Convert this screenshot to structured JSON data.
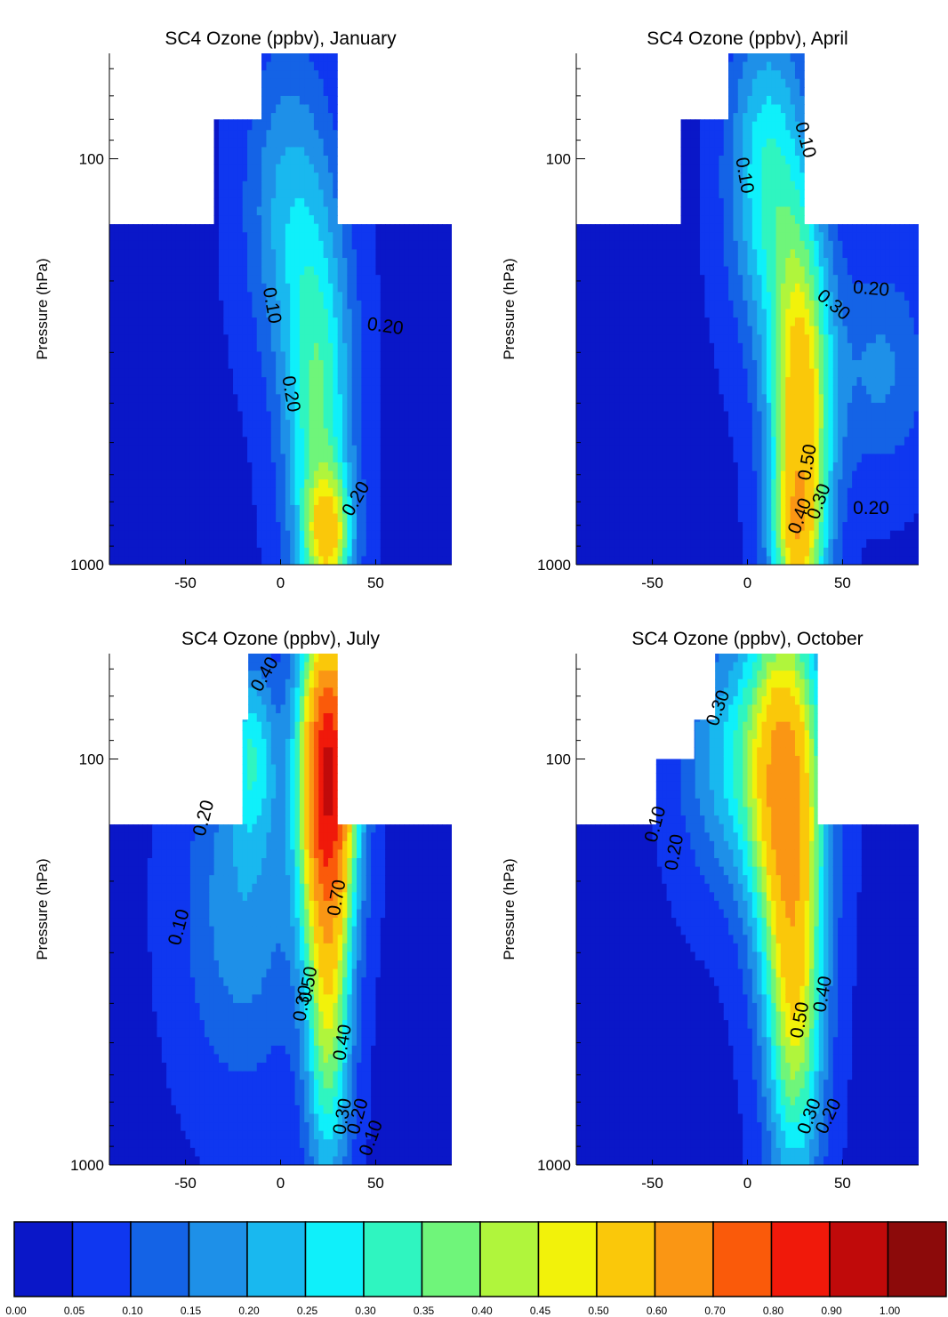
{
  "chart_data": {
    "type": "heatmap",
    "x_ticks": [
      "-50",
      "0",
      "50"
    ],
    "y_ticks": [
      "100",
      "1000"
    ],
    "ylabel": "Pressure (hPa)",
    "xlim": [
      -90,
      90
    ],
    "ylim_hpa": [
      1000,
      70
    ],
    "y_scale": "log",
    "grid": false,
    "colorbar": {
      "position": "bottom",
      "colors": [
        "#0a17c8",
        "#0f37f0",
        "#1463e6",
        "#1e90e8",
        "#19b8ef",
        "#0ff0fa",
        "#2ff5c0",
        "#6ff57a",
        "#b0f53c",
        "#f2f20a",
        "#fac80a",
        "#fa9614",
        "#fa5a0a",
        "#f0190a",
        "#c00a0a",
        "#8c0a0a"
      ],
      "tick_labels": [
        "0.00",
        "0.05",
        "0.10",
        "0.15",
        "0.20",
        "0.25",
        "0.30",
        "0.35",
        "0.40",
        "0.45",
        "0.50",
        "0.60",
        "0.70",
        "0.80",
        "0.90",
        "1.00"
      ]
    },
    "panels": [
      {
        "title": "SC4 Ozone (ppbv), January",
        "mask": {
          "ground_hpa": 145,
          "sh_step_lat": -40,
          "steps": [
            {
              "lat": -35,
              "hpa": 80
            },
            {
              "lat": -10,
              "hpa": 50
            },
            {
              "lat": 30,
              "hpa": 80
            }
          ]
        },
        "contour_labels": [
          {
            "text": "0.10",
            "lat": -5,
            "hpa": 230,
            "rot": 80
          },
          {
            "text": "0.20",
            "lat": 55,
            "hpa": 260,
            "rot": 8
          },
          {
            "text": "0.20",
            "lat": 5,
            "hpa": 380,
            "rot": 80
          },
          {
            "text": "0.20",
            "lat": 40,
            "hpa": 690,
            "rot": -60
          }
        ],
        "peaks": [
          {
            "lat": 3,
            "hpa": 130,
            "sx": 22,
            "sy": 0.9,
            "a": 0.16
          },
          {
            "lat": 20,
            "hpa": 420,
            "sx": 18,
            "sy": 1.1,
            "a": 0.3
          },
          {
            "lat": 25,
            "hpa": 850,
            "sx": 12,
            "sy": 0.35,
            "a": 0.36
          }
        ],
        "base": 0.04
      },
      {
        "title": "SC4 Ozone (ppbv), April",
        "mask": {
          "ground_hpa": 145,
          "sh_step_lat": -40,
          "steps": [
            {
              "lat": -35,
              "hpa": 80
            },
            {
              "lat": -10,
              "hpa": 50
            },
            {
              "lat": 30,
              "hpa": 80
            }
          ]
        },
        "contour_labels": [
          {
            "text": "0.10",
            "lat": 30,
            "hpa": 90,
            "rot": 75
          },
          {
            "text": "0.10",
            "lat": -2,
            "hpa": 110,
            "rot": 80
          },
          {
            "text": "0.20",
            "lat": 65,
            "hpa": 210,
            "rot": 5
          },
          {
            "text": "0.30",
            "lat": 45,
            "hpa": 230,
            "rot": 40
          },
          {
            "text": "0.50",
            "lat": 32,
            "hpa": 560,
            "rot": -80
          },
          {
            "text": "0.30",
            "lat": 38,
            "hpa": 700,
            "rot": -70
          },
          {
            "text": "0.40",
            "lat": 28,
            "hpa": 760,
            "rot": -70
          },
          {
            "text": "0.20",
            "lat": 65,
            "hpa": 730,
            "rot": 0
          }
        ],
        "peaks": [
          {
            "lat": 10,
            "hpa": 110,
            "sx": 20,
            "sy": 0.9,
            "a": 0.25
          },
          {
            "lat": 28,
            "hpa": 440,
            "sx": 16,
            "sy": 1.1,
            "a": 0.53
          },
          {
            "lat": 25,
            "hpa": 850,
            "sx": 12,
            "sy": 0.35,
            "a": 0.2
          },
          {
            "lat": 70,
            "hpa": 330,
            "sx": 25,
            "sy": 0.6,
            "a": 0.12
          }
        ],
        "base": 0.04
      },
      {
        "title": "SC4 Ozone (ppbv), July",
        "mask": {
          "ground_hpa": 145,
          "sh_step_lat": -80,
          "steps": [
            {
              "lat": -20,
              "hpa": 80
            },
            {
              "lat": -17,
              "hpa": 50
            },
            {
              "lat": 30,
              "hpa": 80
            }
          ]
        },
        "contour_labels": [
          {
            "text": "0.40",
            "lat": -8,
            "hpa": 62,
            "rot": -60
          },
          {
            "text": "0.20",
            "lat": -40,
            "hpa": 140,
            "rot": -75
          },
          {
            "text": "0.10",
            "lat": -53,
            "hpa": 260,
            "rot": -75
          },
          {
            "text": "0.70",
            "lat": 30,
            "hpa": 220,
            "rot": -80
          },
          {
            "text": "0.50",
            "lat": 15,
            "hpa": 360,
            "rot": -80
          },
          {
            "text": "0.30",
            "lat": 12,
            "hpa": 400,
            "rot": -80
          },
          {
            "text": "0.40",
            "lat": 33,
            "hpa": 500,
            "rot": -80
          },
          {
            "text": "0.30",
            "lat": 33,
            "hpa": 760,
            "rot": -80
          },
          {
            "text": "0.20",
            "lat": 41,
            "hpa": 760,
            "rot": -75
          },
          {
            "text": "0.10",
            "lat": 48,
            "hpa": 860,
            "rot": -70
          }
        ],
        "peaks": [
          {
            "lat": 25,
            "hpa": 105,
            "sx": 15,
            "sy": 0.9,
            "a": 0.83
          },
          {
            "lat": 25,
            "hpa": 420,
            "sx": 12,
            "sy": 1.0,
            "a": 0.35
          },
          {
            "lat": -15,
            "hpa": 95,
            "sx": 12,
            "sy": 0.5,
            "a": 0.2
          },
          {
            "lat": -20,
            "hpa": 230,
            "sx": 30,
            "sy": 1.0,
            "a": 0.15
          }
        ],
        "base": 0.04
      },
      {
        "title": "SC4 Ozone (ppbv), October",
        "mask": {
          "ground_hpa": 145,
          "sh_step_lat": -85,
          "steps": [
            {
              "lat": -48,
              "hpa": 100
            },
            {
              "lat": -28,
              "hpa": 80
            },
            {
              "lat": -17,
              "hpa": 50
            },
            {
              "lat": 37,
              "hpa": 80
            }
          ]
        },
        "contour_labels": [
          {
            "text": "0.30",
            "lat": -15,
            "hpa": 75,
            "rot": -70
          },
          {
            "text": "0.10",
            "lat": -48,
            "hpa": 145,
            "rot": -75
          },
          {
            "text": "0.20",
            "lat": -38,
            "hpa": 170,
            "rot": -80
          },
          {
            "text": "0.50",
            "lat": 28,
            "hpa": 440,
            "rot": -80
          },
          {
            "text": "0.40",
            "lat": 40,
            "hpa": 380,
            "rot": -80
          },
          {
            "text": "0.30",
            "lat": 33,
            "hpa": 760,
            "rot": -70
          },
          {
            "text": "0.20",
            "lat": 43,
            "hpa": 760,
            "rot": -65
          }
        ],
        "peaks": [
          {
            "lat": 20,
            "hpa": 110,
            "sx": 20,
            "sy": 1.0,
            "a": 0.55
          },
          {
            "lat": 25,
            "hpa": 420,
            "sx": 15,
            "sy": 1.0,
            "a": 0.38
          },
          {
            "lat": -10,
            "hpa": 100,
            "sx": 25,
            "sy": 0.7,
            "a": 0.18
          }
        ],
        "base": 0.04
      }
    ]
  }
}
